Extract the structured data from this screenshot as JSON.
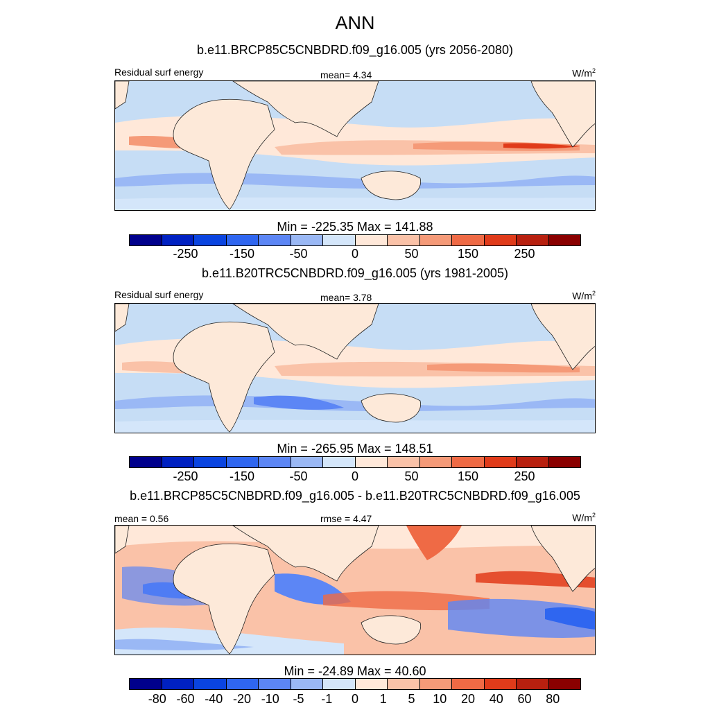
{
  "figure": {
    "title": "ANN"
  },
  "colors": {
    "palette12": [
      "#00008c",
      "#0021c2",
      "#0a44e0",
      "#2f66f0",
      "#5c86f5",
      "#9ab8f5",
      "#d4e6fa",
      "#ffe8d9",
      "#fac2a8",
      "#f59a78",
      "#ef6a45",
      "#e03b1a",
      "#b8200f",
      "#8a0000"
    ],
    "land": "#fde9d9",
    "ocean": "#c6ddf5"
  },
  "panels": [
    {
      "title": "b.e11.BRCP85C5CNBDRD.f09_g16.005 (yrs 2056-2080)",
      "left_label": "Residual surf energy",
      "center_label": "mean=   4.34",
      "units_base": "W/m",
      "units_exp": "2"
    },
    {
      "title": "b.e11.B20TRC5CNBDRD.f09_g16.005 (yrs 1981-2005)",
      "left_label": "Residual surf energy",
      "center_label": "mean=   3.78",
      "units_base": "W/m",
      "units_exp": "2"
    },
    {
      "title": "b.e11.BRCP85C5CNBDRD.f09_g16.005 - b.e11.B20TRC5CNBDRD.f09_g16.005",
      "left_label": "mean =   0.56",
      "center_label": "rmse =   4.47",
      "units_base": "W/m",
      "units_exp": "2"
    }
  ],
  "colorbars": [
    {
      "title": "Min = -225.35 Max = 141.88",
      "ticks": [
        "-250",
        "-150",
        "-50",
        "0",
        "50",
        "150",
        "250"
      ]
    },
    {
      "title": "Min = -265.95 Max = 148.51",
      "ticks": [
        "-250",
        "-150",
        "-50",
        "0",
        "50",
        "150",
        "250"
      ]
    },
    {
      "title": "Min = -24.89 Max =  40.60",
      "ticks": [
        "-80",
        "-60",
        "-40",
        "-20",
        "-10",
        "-5",
        "-1",
        "0",
        "1",
        "5",
        "10",
        "20",
        "40",
        "60",
        "80"
      ]
    }
  ]
}
